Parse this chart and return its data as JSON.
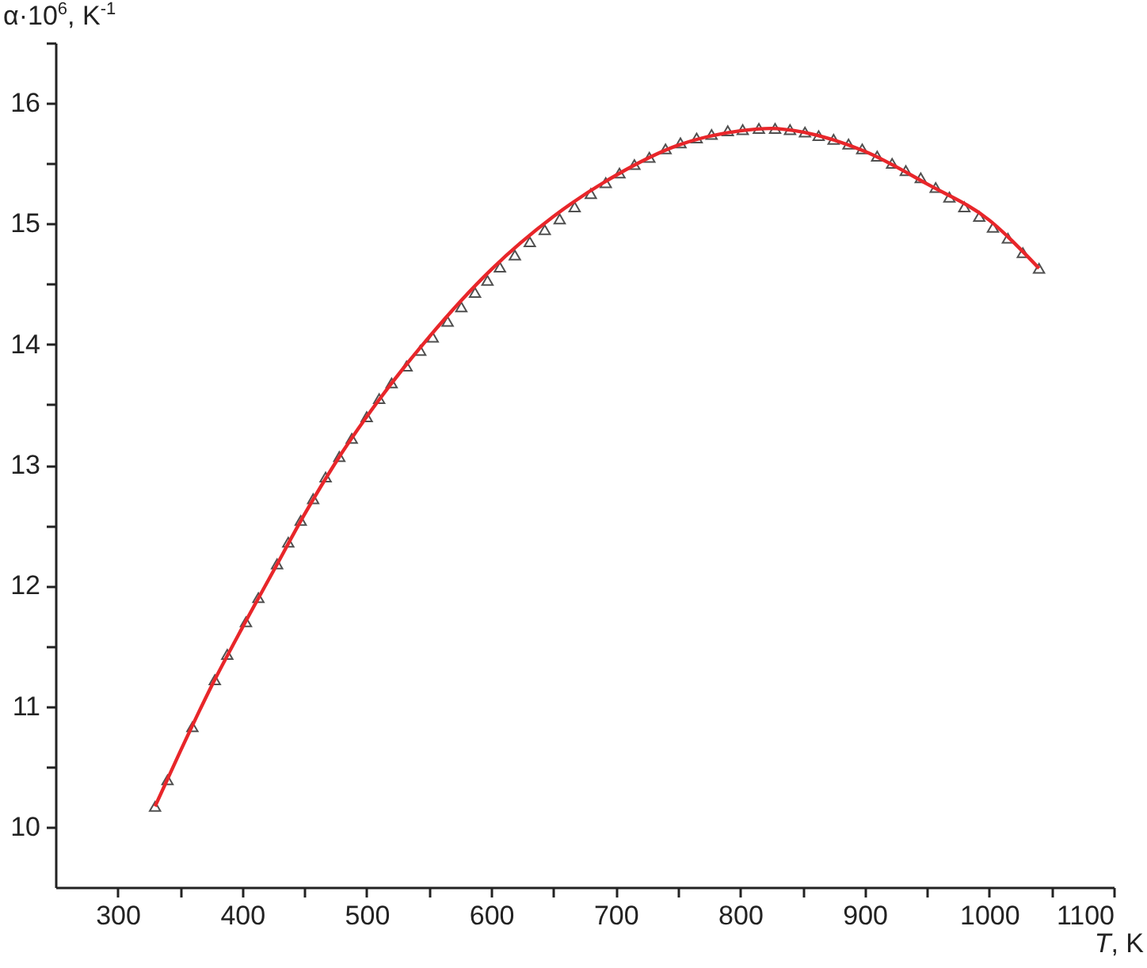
{
  "chart_data": {
    "type": "scatter",
    "xlabel": "T, K",
    "ylabel": "α·10$^{6}$, K$^{-1}$",
    "xlim": [
      250,
      1100
    ],
    "ylim": [
      9.5,
      16.5
    ],
    "xticks": [
      300,
      {
        "value": 350,
        "label": null
      },
      400,
      {
        "value": 450,
        "label": null
      },
      500,
      {
        "value": 550,
        "label": null
      },
      600,
      {
        "value": 650,
        "label": null
      },
      700,
      {
        "value": 750,
        "label": null
      },
      800,
      {
        "value": 850,
        "label": null
      },
      900,
      {
        "value": 950,
        "label": null
      },
      1000,
      {
        "value": 1050,
        "label": null
      },
      1100
    ],
    "yticks": [
      10,
      {
        "value": 10.5,
        "label": null
      },
      11,
      {
        "value": 11.5,
        "label": null
      },
      12,
      {
        "value": 12.5,
        "label": null
      },
      13,
      {
        "value": 13.5,
        "label": null
      },
      14,
      {
        "value": 14.5,
        "label": null
      },
      15,
      {
        "value": 15.5,
        "label": null
      },
      16,
      {
        "value": 16.5,
        "label": null
      }
    ],
    "grid": false,
    "series": [
      {
        "marker": "triangle",
        "color": "#505050",
        "x": [
          330,
          340,
          360,
          378,
          388,
          403,
          413,
          428,
          437,
          447,
          457,
          467,
          478,
          488,
          500,
          510,
          520,
          532,
          543,
          553,
          565,
          576,
          587,
          597,
          607,
          619,
          631,
          643,
          655,
          667,
          680,
          692,
          703,
          715,
          727,
          740,
          752,
          765,
          777,
          790,
          802,
          815,
          828,
          840,
          852,
          863,
          875,
          887,
          898,
          910,
          922,
          933,
          945,
          957,
          968,
          980,
          992,
          1003,
          1015,
          1027,
          1040
        ],
        "values": [
          10.17,
          10.39,
          10.83,
          11.22,
          11.43,
          11.7,
          11.9,
          12.18,
          12.36,
          12.54,
          12.72,
          12.9,
          13.07,
          13.22,
          13.4,
          13.55,
          13.68,
          13.82,
          13.95,
          14.06,
          14.19,
          14.31,
          14.43,
          14.53,
          14.64,
          14.74,
          14.85,
          14.95,
          15.04,
          15.14,
          15.25,
          15.34,
          15.42,
          15.49,
          15.55,
          15.62,
          15.67,
          15.71,
          15.74,
          15.77,
          15.78,
          15.79,
          15.79,
          15.78,
          15.76,
          15.73,
          15.7,
          15.66,
          15.62,
          15.56,
          15.5,
          15.44,
          15.38,
          15.3,
          15.22,
          15.14,
          15.06,
          14.97,
          14.88,
          14.76,
          14.63
        ]
      },
      {
        "type": "line",
        "line_style": "solid",
        "color": "#e8262a",
        "x": [
          330,
          350,
          375,
          400,
          425,
          450,
          475,
          500,
          550,
          600,
          650,
          700,
          750,
          800,
          825,
          850,
          900,
          950,
          1000,
          1040
        ],
        "values": [
          10.17,
          10.62,
          11.16,
          11.65,
          12.12,
          12.59,
          13.02,
          13.4,
          14.06,
          14.62,
          15.06,
          15.4,
          15.65,
          15.77,
          15.79,
          15.76,
          15.6,
          15.33,
          15.03,
          14.63
        ]
      }
    ]
  }
}
